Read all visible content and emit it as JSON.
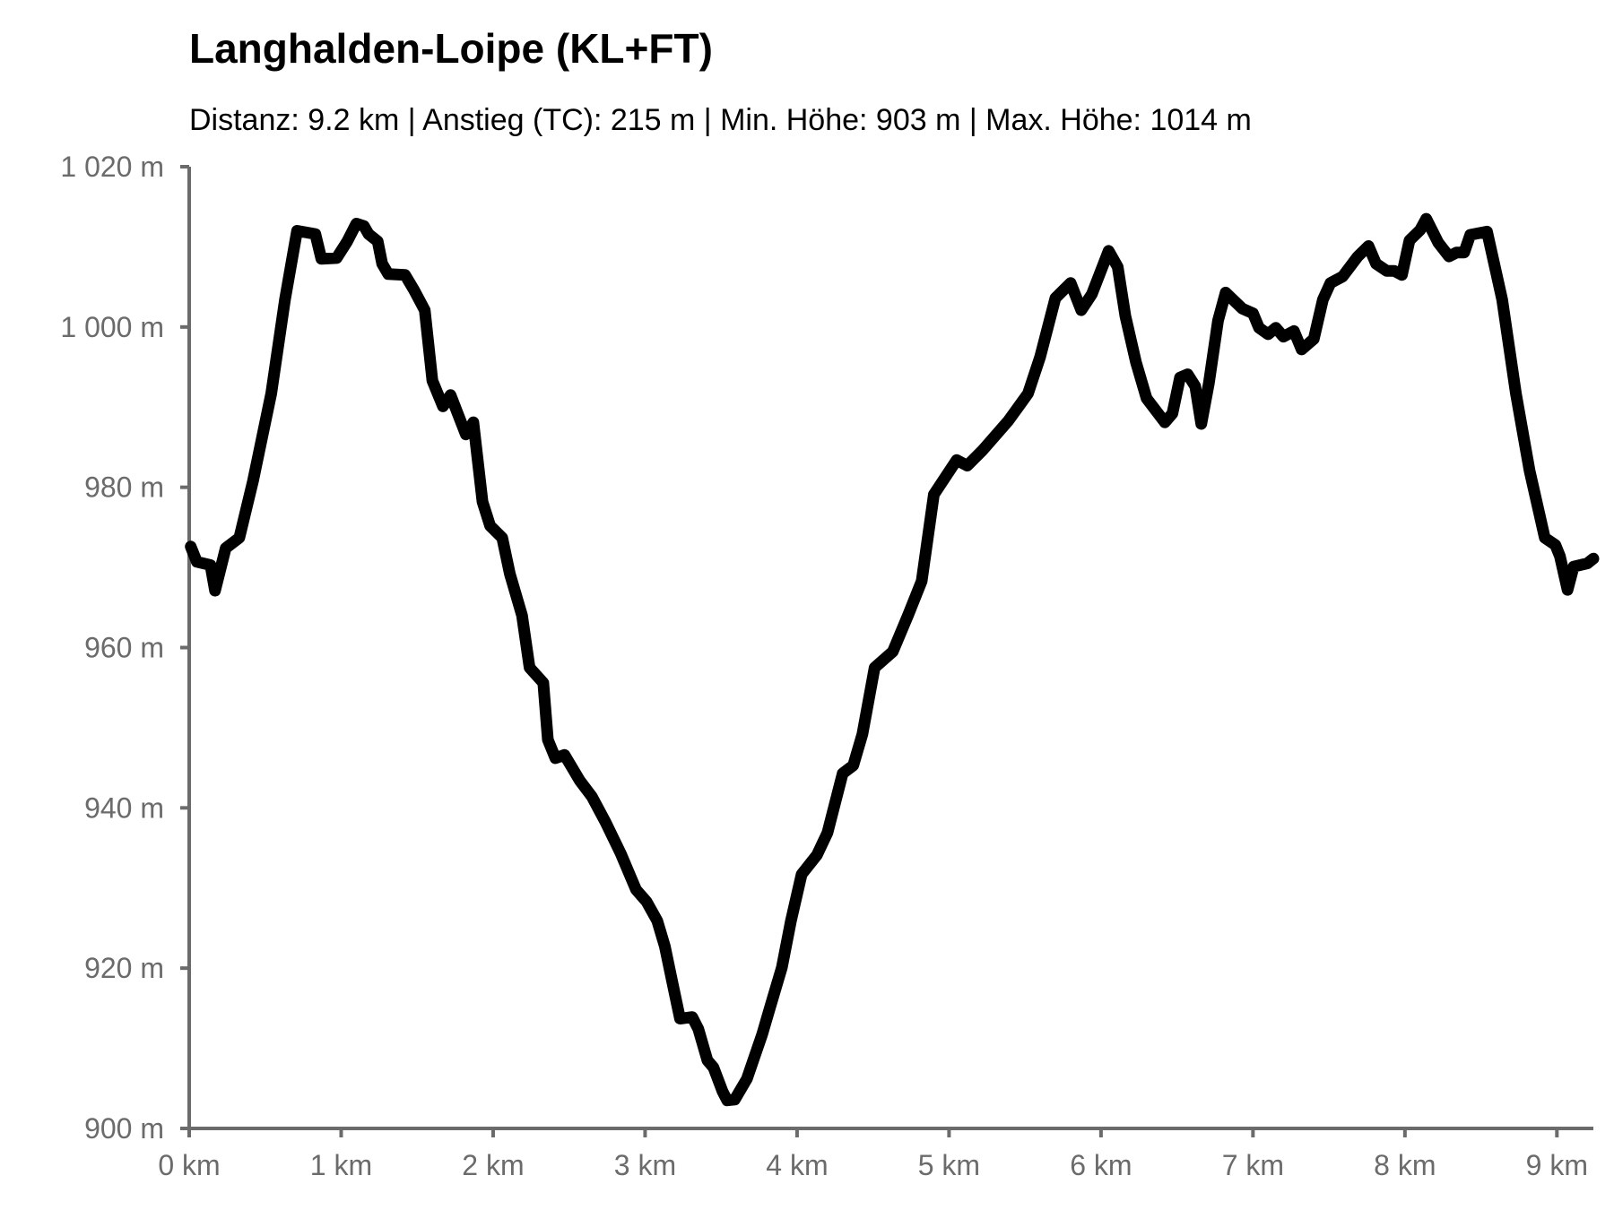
{
  "chart_data": {
    "type": "line",
    "title": "Langhalden-Loipe (KL+FT)",
    "subtitle": "Distanz: 9.2 km | Anstieg (TC): 215 m | Min. Höhe: 903 m | Max. Höhe: 1014 m",
    "color": "#000000",
    "x": [
      0.01,
      0.05,
      0.14,
      0.17,
      0.24,
      0.33,
      0.42,
      0.54,
      0.63,
      0.71,
      0.83,
      0.87,
      0.97,
      1.04,
      1.1,
      1.15,
      1.18,
      1.24,
      1.27,
      1.31,
      1.42,
      1.48,
      1.55,
      1.6,
      1.67,
      1.72,
      1.82,
      1.87,
      1.93,
      1.98,
      2.06,
      2.11,
      2.19,
      2.24,
      2.33,
      2.36,
      2.41,
      2.47,
      2.57,
      2.65,
      2.74,
      2.84,
      2.94,
      3.01,
      3.08,
      3.13,
      3.18,
      3.23,
      3.31,
      3.35,
      3.41,
      3.45,
      3.51,
      3.54,
      3.59,
      3.67,
      3.77,
      3.83,
      3.9,
      3.96,
      4.03,
      4.13,
      4.2,
      4.3,
      4.37,
      4.43,
      4.51,
      4.63,
      4.73,
      4.82,
      4.9,
      5.05,
      5.12,
      5.22,
      5.39,
      5.52,
      5.6,
      5.7,
      5.8,
      5.87,
      5.94,
      6.05,
      6.11,
      6.16,
      6.23,
      6.3,
      6.42,
      6.47,
      6.52,
      6.57,
      6.62,
      6.66,
      6.71,
      6.77,
      6.82,
      6.93,
      7.0,
      7.04,
      7.1,
      7.15,
      7.2,
      7.27,
      7.32,
      7.4,
      7.46,
      7.51,
      7.59,
      7.69,
      7.76,
      7.81,
      7.88,
      7.93,
      7.98,
      8.03,
      8.1,
      8.14,
      8.22,
      8.29,
      8.34,
      8.39,
      8.43,
      8.54,
      8.64,
      8.73,
      8.82,
      8.92,
      8.99,
      9.02,
      9.07,
      9.11,
      9.2,
      9.24
    ],
    "values": [
      972.6,
      970.7,
      970.3,
      967.1,
      972.4,
      973.7,
      980.8,
      991.7,
      1003.4,
      1012,
      1011.6,
      1008.5,
      1008.6,
      1010.7,
      1012.9,
      1012.6,
      1011.6,
      1010.7,
      1007.9,
      1006.6,
      1006.5,
      1004.6,
      1002.1,
      993.3,
      990.1,
      991.5,
      986.6,
      988.1,
      978.2,
      975.2,
      973.7,
      969.2,
      964.0,
      957.5,
      955.6,
      948.5,
      946.2,
      946.6,
      943.4,
      941.4,
      938.2,
      934.3,
      929.8,
      928.3,
      925.9,
      922.7,
      918.2,
      913.7,
      913.9,
      912.4,
      908.5,
      907.6,
      904.6,
      903.5,
      903.6,
      906.2,
      911.7,
      915.6,
      920.1,
      925.9,
      931.7,
      934.1,
      936.9,
      944.3,
      945.3,
      949.2,
      957.5,
      959.5,
      964.0,
      968.3,
      979.1,
      983.4,
      982.7,
      984.6,
      988.3,
      991.7,
      996.3,
      1003.6,
      1005.5,
      1002.1,
      1004.1,
      1009.5,
      1007.5,
      1001.4,
      995.6,
      991.1,
      988.1,
      989.2,
      993.7,
      994.1,
      992.6,
      987.9,
      993.0,
      1000.8,
      1004.3,
      1002.3,
      1001.7,
      999.9,
      999.1,
      999.9,
      998.8,
      999.5,
      997.2,
      998.5,
      1003.4,
      1005.5,
      1006.3,
      1008.8,
      1010.1,
      1007.9,
      1007.0,
      1007.0,
      1006.5,
      1010.8,
      1012.1,
      1013.5,
      1010.5,
      1008.8,
      1009.3,
      1009.3,
      1011.5,
      1011.9,
      1003.4,
      991.7,
      982.1,
      973.7,
      972.8,
      971.4,
      967.2,
      970.1,
      970.5,
      971.1
    ],
    "xlim": [
      0,
      9.24
    ],
    "ylim": [
      900,
      1020
    ],
    "xticks": [
      {
        "value": 0,
        "label": "0 km"
      },
      {
        "value": 1,
        "label": "1 km"
      },
      {
        "value": 2,
        "label": "2 km"
      },
      {
        "value": 3,
        "label": "3 km"
      },
      {
        "value": 4,
        "label": "4 km"
      },
      {
        "value": 5,
        "label": "5 km"
      },
      {
        "value": 6,
        "label": "6 km"
      },
      {
        "value": 7,
        "label": "7 km"
      },
      {
        "value": 8,
        "label": "8 km"
      },
      {
        "value": 9,
        "label": "9 km"
      }
    ],
    "yticks": [
      {
        "value": 900,
        "label": "900 m"
      },
      {
        "value": 920,
        "label": "920 m"
      },
      {
        "value": 940,
        "label": "940 m"
      },
      {
        "value": 960,
        "label": "960 m"
      },
      {
        "value": 980,
        "label": "980 m"
      },
      {
        "value": 1000,
        "label": "1 000 m"
      },
      {
        "value": 1020,
        "label": "1 020 m"
      }
    ]
  }
}
